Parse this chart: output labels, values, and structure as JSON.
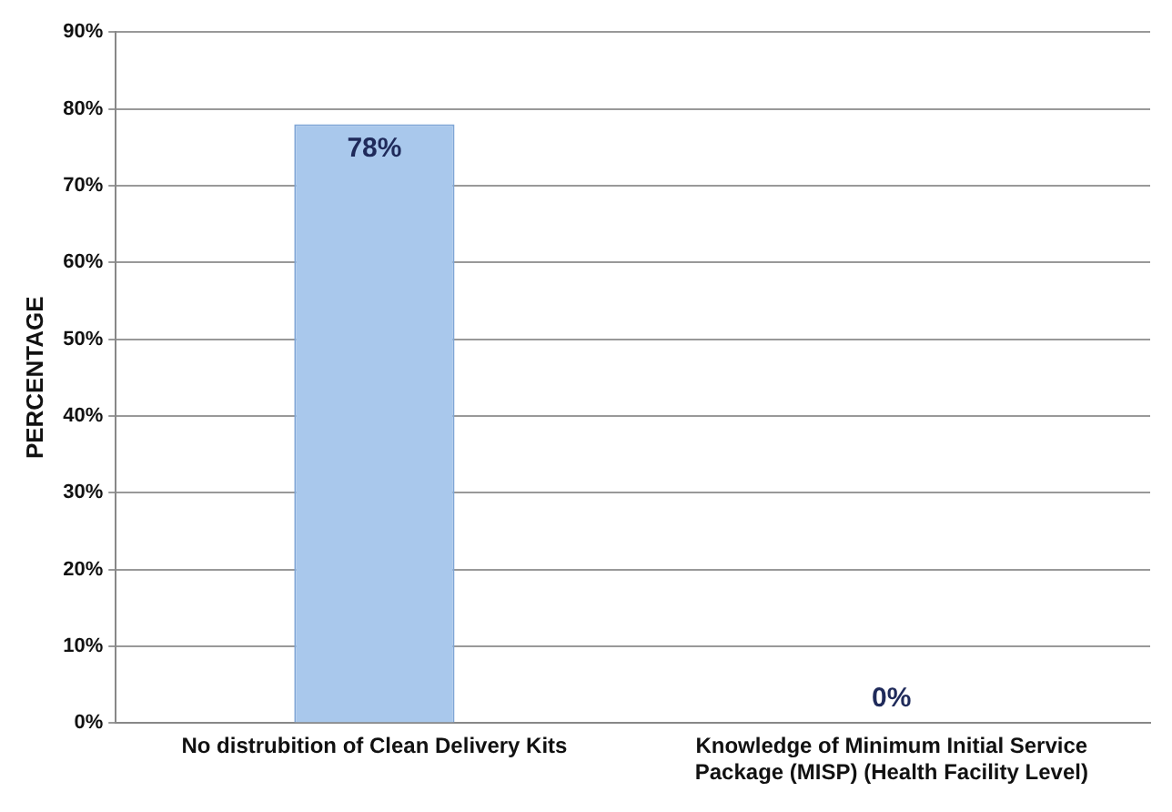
{
  "chart_data": {
    "type": "bar",
    "ylabel": "PERCENTAGE",
    "categories": [
      "No distrubition of Clean Delivery Kits",
      "Knowledge of Minimum Initial Service Package (MISP) (Health Facility Level)"
    ],
    "values": [
      78,
      0
    ],
    "value_labels": [
      "78%",
      "0%"
    ],
    "color": "#a9c8ec",
    "ylim": [
      0,
      90
    ],
    "yticks": [
      {
        "value": 0,
        "label": "0%"
      },
      {
        "value": 10,
        "label": "10%"
      },
      {
        "value": 20,
        "label": "20%"
      },
      {
        "value": 30,
        "label": "30%"
      },
      {
        "value": 40,
        "label": "40%"
      },
      {
        "value": 50,
        "label": "50%"
      },
      {
        "value": 60,
        "label": "60%"
      },
      {
        "value": 70,
        "label": "70%"
      },
      {
        "value": 80,
        "label": "80%"
      },
      {
        "value": 90,
        "label": "90%"
      }
    ],
    "grid": "y"
  }
}
